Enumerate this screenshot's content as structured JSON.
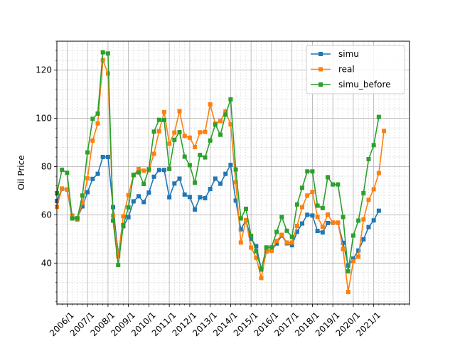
{
  "chart_data": {
    "type": "line",
    "title": "",
    "xlabel": "",
    "ylabel": "Oil Price",
    "ylim": [
      23,
      132
    ],
    "y_ticks": [
      40,
      60,
      80,
      100,
      120
    ],
    "x_tick_labels": [
      "2006/1",
      "2007/1",
      "2008/1",
      "2009/1",
      "2010/1",
      "2011/1",
      "2012/1",
      "2013/1",
      "2014/1",
      "2015/1",
      "2016/1",
      "2017/1",
      "2018/1",
      "2019/1",
      "2020/1",
      "2021/1"
    ],
    "x_start": "2005/7",
    "x_step_months": 3,
    "grid": true,
    "legend_position": "top-right",
    "series": [
      {
        "name": "simu",
        "color": "#1f77b4",
        "marker": "square",
        "values": [
          65.7,
          70.8,
          70.5,
          58.5,
          58.6,
          63.5,
          69.4,
          74.9,
          77.0,
          84.0,
          84.0,
          63.2,
          44.0,
          55.3,
          59.0,
          65.6,
          67.7,
          65.3,
          69.2,
          75.8,
          78.6,
          78.6,
          67.3,
          73.0,
          75.0,
          68.4,
          67.4,
          62.2,
          67.3,
          66.9,
          70.7,
          75.0,
          72.9,
          77.0,
          80.7,
          65.9,
          54.0,
          57.7,
          50.1,
          47.0,
          37.6,
          44.9,
          45.2,
          48.1,
          51.4,
          48.2,
          47.4,
          53.0,
          56.4,
          60.0,
          59.7,
          53.3,
          52.7,
          56.6,
          56.7,
          56.7,
          48.4,
          39.0,
          41.9,
          45.2,
          49.8,
          54.9,
          57.7,
          61.7
        ]
      },
      {
        "name": "real",
        "color": "#ff7f0e",
        "marker": "square",
        "values": [
          63.3,
          70.9,
          70.4,
          59.7,
          58.0,
          65.0,
          75.1,
          90.8,
          97.9,
          124.2,
          118.6,
          59.6,
          42.9,
          59.4,
          68.2,
          76.4,
          79.0,
          78.3,
          78.5,
          85.3,
          94.7,
          102.6,
          89.5,
          94.1,
          103.0,
          92.7,
          92.0,
          88.1,
          94.2,
          94.4,
          105.8,
          97.8,
          98.9,
          102.9,
          97.5,
          73.5,
          48.5,
          57.8,
          46.4,
          42.2,
          33.8,
          45.1,
          45.1,
          49.2,
          51.7,
          48.5,
          48.5,
          55.4,
          63.2,
          68.0,
          69.5,
          59.2,
          55.0,
          60.1,
          56.8,
          56.8,
          45.8,
          28.0,
          40.8,
          42.7,
          58.1,
          66.2,
          70.6,
          77.3,
          94.8
        ]
      },
      {
        "name": "simu_before",
        "color": "#2ca02c",
        "marker": "square",
        "values": [
          69.0,
          78.7,
          77.4,
          58.5,
          58.5,
          68.0,
          85.9,
          99.8,
          102.0,
          127.4,
          126.9,
          57.6,
          39.2,
          55.7,
          63.1,
          76.6,
          77.6,
          72.8,
          78.9,
          94.5,
          99.4,
          99.3,
          79.0,
          91.1,
          94.3,
          84.1,
          80.6,
          73.3,
          84.8,
          83.8,
          90.8,
          97.4,
          93.2,
          101.5,
          107.9,
          78.8,
          58.5,
          62.5,
          51.3,
          44.9,
          37.3,
          46.5,
          46.5,
          52.9,
          59.1,
          53.4,
          50.8,
          64.3,
          71.2,
          78.0,
          78.0,
          63.8,
          62.8,
          75.6,
          72.6,
          72.6,
          59.1,
          36.6,
          51.4,
          57.6,
          69.0,
          83.1,
          88.9,
          100.6
        ]
      }
    ]
  }
}
